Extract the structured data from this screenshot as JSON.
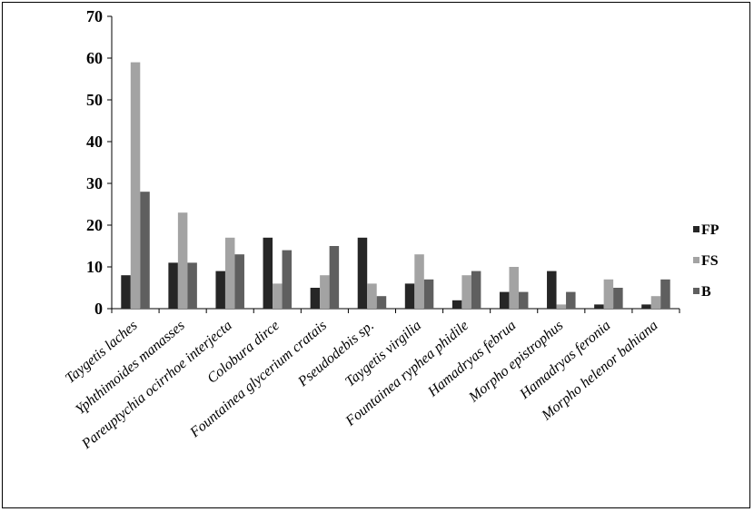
{
  "chart_data": {
    "type": "bar",
    "title": "",
    "xlabel": "",
    "ylabel": "",
    "ylim": [
      0,
      70
    ],
    "yticks": [
      0,
      10,
      20,
      30,
      40,
      50,
      60,
      70
    ],
    "grid": false,
    "legend_position": "right",
    "categories": [
      "Taygetis laches",
      "Yphthimoides manasses",
      "Pareuptychia ocirrhoe interjecta",
      "Colobura dirce",
      "Fountainea glycerium cratais",
      "Pseudodebis sp.",
      "Taygetis virgilia",
      "Fountainea ryphea phidile",
      "Hamadryas februa",
      "Morpho epistrophus",
      "Hamadryas feronia",
      "Morpho helenor bahiana"
    ],
    "series": [
      {
        "name": "FP",
        "color": "#262626",
        "values": [
          8,
          11,
          9,
          17,
          5,
          17,
          6,
          2,
          4,
          9,
          1,
          1
        ]
      },
      {
        "name": "FS",
        "color": "#a3a3a3",
        "values": [
          59,
          23,
          17,
          6,
          8,
          6,
          13,
          8,
          10,
          1,
          7,
          3
        ]
      },
      {
        "name": "B",
        "color": "#5f5f5f",
        "values": [
          28,
          11,
          13,
          14,
          15,
          3,
          7,
          9,
          4,
          4,
          5,
          7
        ]
      }
    ]
  }
}
